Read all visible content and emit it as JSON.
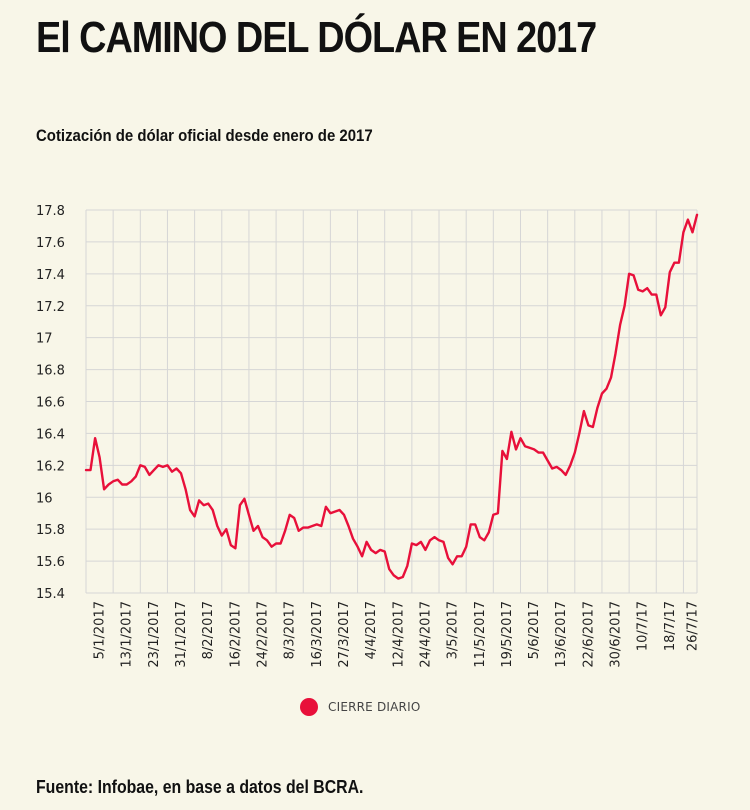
{
  "header": {
    "title": "El CAMINO DEL DÓLAR EN 2017",
    "subtitle": "Cotización de dólar oficial desde enero de 2017"
  },
  "legend": {
    "label": "CIERRE DIARIO",
    "color": "#e8103a"
  },
  "footer": {
    "source": "Fuente: Infobae, en base a datos del BCRA."
  },
  "colors": {
    "background": "#f8f6e8",
    "grid": "#d6d6d6",
    "line": "#e8103a"
  },
  "chart_data": {
    "type": "line",
    "ylim": [
      15.4,
      17.8
    ],
    "yticks": [
      15.4,
      15.6,
      15.8,
      16,
      16.2,
      16.4,
      16.6,
      16.8,
      17,
      17.2,
      17.4,
      17.6,
      17.8
    ],
    "ytick_labels": [
      "15.4",
      "15.6",
      "15.8",
      "16",
      "16.2",
      "16.4",
      "16.6",
      "16.8",
      "17",
      "17.2",
      "17.4",
      "17.6",
      "17.8"
    ],
    "xtick_labels": [
      "5/1/2017",
      "13/1/2017",
      "23/1/2017",
      "31/1/2017",
      "8/2/2017",
      "16/2/2017",
      "24/2/2017",
      "8/3/2017",
      "16/3/2017",
      "27/3/2017",
      "4/4/2017",
      "12/4/2017",
      "24/4/2017",
      "3/5/2017",
      "11/5/2017",
      "19/5/2017",
      "5/6/2017",
      "13/6/2017",
      "22/6/2017",
      "30/6/2017",
      "10/7/17",
      "18/7/17",
      "26/7/17"
    ],
    "xtick_positions": [
      3,
      9,
      15,
      21,
      27,
      33,
      39,
      45,
      51,
      57,
      63,
      69,
      75,
      81,
      87,
      93,
      99,
      105,
      111,
      117,
      123,
      129,
      134
    ],
    "grid": true,
    "series": [
      {
        "name": "CIERRE DIARIO",
        "values": [
          16.17,
          16.17,
          16.37,
          16.25,
          16.05,
          16.08,
          16.1,
          16.11,
          16.08,
          16.08,
          16.1,
          16.13,
          16.2,
          16.19,
          16.14,
          16.17,
          16.2,
          16.19,
          16.2,
          16.16,
          16.18,
          16.15,
          16.05,
          15.92,
          15.88,
          15.98,
          15.95,
          15.96,
          15.92,
          15.82,
          15.76,
          15.8,
          15.7,
          15.68,
          15.95,
          15.99,
          15.89,
          15.79,
          15.82,
          15.75,
          15.73,
          15.69,
          15.71,
          15.71,
          15.79,
          15.89,
          15.87,
          15.79,
          15.81,
          15.81,
          15.82,
          15.83,
          15.82,
          15.94,
          15.9,
          15.91,
          15.92,
          15.89,
          15.82,
          15.74,
          15.69,
          15.63,
          15.72,
          15.67,
          15.65,
          15.67,
          15.66,
          15.55,
          15.51,
          15.49,
          15.5,
          15.57,
          15.71,
          15.7,
          15.72,
          15.67,
          15.73,
          15.75,
          15.73,
          15.72,
          15.62,
          15.58,
          15.63,
          15.63,
          15.69,
          15.83,
          15.83,
          15.75,
          15.73,
          15.78,
          15.89,
          15.9,
          16.29,
          16.24,
          16.41,
          16.3,
          16.37,
          16.32,
          16.31,
          16.3,
          16.28,
          16.28,
          16.23,
          16.18,
          16.19,
          16.17,
          16.14,
          16.2,
          16.28,
          16.4,
          16.54,
          16.45,
          16.44,
          16.56,
          16.65,
          16.68,
          16.75,
          16.9,
          17.08,
          17.2,
          17.4,
          17.39,
          17.3,
          17.29,
          17.31,
          17.27,
          17.27,
          17.14,
          17.19,
          17.41,
          17.47,
          17.47,
          17.66,
          17.74,
          17.66,
          17.77
        ]
      }
    ]
  }
}
